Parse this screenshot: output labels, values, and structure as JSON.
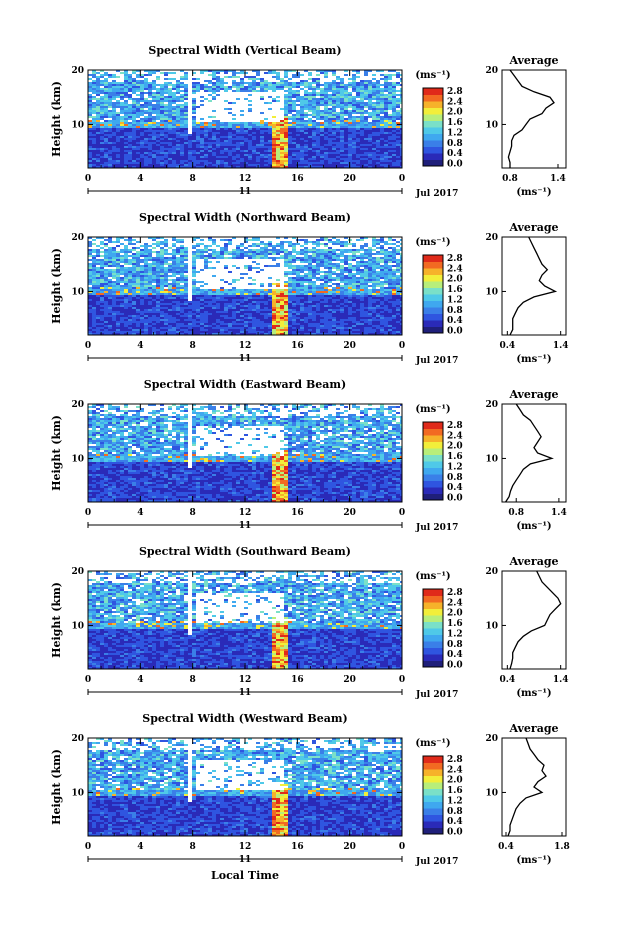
{
  "figure": {
    "xlabel": "Local Time",
    "date_label": "Jul 2017",
    "day_label": "11",
    "ylabel": "Height (km)",
    "avg_title": "Average",
    "cbar_unit": "(ms⁻¹)",
    "avg_unit": "(ms⁻¹)",
    "colormap": [
      "#1f1f7a",
      "#2a2ab8",
      "#2f55e0",
      "#3a7fe8",
      "#3fa8ef",
      "#4fc9e8",
      "#7ae0c8",
      "#b8ee7a",
      "#f2ee3a",
      "#f6b22a",
      "#f26a22",
      "#e02a1a"
    ]
  },
  "chart_data": [
    {
      "type": "heatmap",
      "title": "Spectral Width (Vertical Beam)",
      "x_ticks": [
        "0",
        "4",
        "8",
        "12",
        "16",
        "20",
        "0"
      ],
      "y_ticks": [
        "10",
        "20"
      ],
      "xlim": [
        0,
        24
      ],
      "ylim": [
        2,
        20
      ],
      "colorbar_ticks": [
        "2.8",
        "2.4",
        "2.0",
        "1.6",
        "1.2",
        "0.8",
        "0.4",
        "0.0"
      ],
      "avg_profile": {
        "xlabel_ticks": [
          "0.8",
          "1.4"
        ],
        "xlim": [
          0.7,
          1.5
        ],
        "heights": [
          2,
          3,
          4,
          5,
          6,
          7,
          8,
          9,
          10,
          11,
          12,
          13,
          14,
          15,
          16,
          17,
          18,
          19,
          20
        ],
        "values": [
          0.8,
          0.8,
          0.78,
          0.8,
          0.82,
          0.82,
          0.85,
          0.95,
          1.0,
          1.05,
          1.2,
          1.25,
          1.35,
          1.3,
          1.1,
          0.95,
          0.9,
          0.85,
          0.8
        ]
      }
    },
    {
      "type": "heatmap",
      "title": "Spectral Width (Northward Beam)",
      "x_ticks": [
        "0",
        "4",
        "8",
        "12",
        "16",
        "20",
        "0"
      ],
      "y_ticks": [
        "10",
        "20"
      ],
      "xlim": [
        0,
        24
      ],
      "ylim": [
        2,
        20
      ],
      "colorbar_ticks": [
        "2.8",
        "2.4",
        "2.0",
        "1.6",
        "1.2",
        "0.8",
        "0.4",
        "0.0"
      ],
      "avg_profile": {
        "xlabel_ticks": [
          "0.4",
          "1.4"
        ],
        "xlim": [
          0.3,
          1.5
        ],
        "heights": [
          2,
          3,
          4,
          5,
          6,
          7,
          8,
          9,
          10,
          11,
          12,
          13,
          14,
          15,
          16,
          17,
          18,
          19,
          20
        ],
        "values": [
          0.45,
          0.5,
          0.5,
          0.5,
          0.55,
          0.6,
          0.7,
          0.9,
          1.3,
          1.1,
          1.0,
          1.05,
          1.15,
          1.05,
          1.0,
          0.95,
          0.9,
          0.85,
          0.8
        ]
      }
    },
    {
      "type": "heatmap",
      "title": "Spectral Width (Eastward Beam)",
      "x_ticks": [
        "0",
        "4",
        "8",
        "12",
        "16",
        "20",
        "0"
      ],
      "y_ticks": [
        "10",
        "20"
      ],
      "xlim": [
        0,
        24
      ],
      "ylim": [
        2,
        20
      ],
      "colorbar_ticks": [
        "2.8",
        "2.4",
        "2.0",
        "1.6",
        "1.2",
        "0.8",
        "0.4",
        "0.0"
      ],
      "avg_profile": {
        "xlabel_ticks": [
          "0.8",
          "1.4"
        ],
        "xlim": [
          0.6,
          1.5
        ],
        "heights": [
          2,
          3,
          4,
          5,
          6,
          7,
          8,
          9,
          10,
          11,
          12,
          13,
          14,
          15,
          16,
          17,
          18,
          19,
          20
        ],
        "values": [
          0.65,
          0.7,
          0.72,
          0.75,
          0.8,
          0.85,
          0.9,
          1.0,
          1.3,
          1.1,
          1.05,
          1.1,
          1.15,
          1.1,
          1.05,
          1.0,
          0.9,
          0.85,
          0.8
        ]
      }
    },
    {
      "type": "heatmap",
      "title": "Spectral Width (Southward Beam)",
      "x_ticks": [
        "0",
        "4",
        "8",
        "12",
        "16",
        "20",
        "0"
      ],
      "y_ticks": [
        "10",
        "20"
      ],
      "xlim": [
        0,
        24
      ],
      "ylim": [
        2,
        20
      ],
      "colorbar_ticks": [
        "2.8",
        "2.4",
        "2.0",
        "1.6",
        "1.2",
        "0.8",
        "0.4",
        "0.0"
      ],
      "avg_profile": {
        "xlabel_ticks": [
          "0.4",
          "1.4"
        ],
        "xlim": [
          0.3,
          1.5
        ],
        "heights": [
          2,
          3,
          4,
          5,
          6,
          7,
          8,
          9,
          10,
          11,
          12,
          13,
          14,
          15,
          16,
          17,
          18,
          19,
          20
        ],
        "values": [
          0.45,
          0.48,
          0.5,
          0.5,
          0.55,
          0.6,
          0.7,
          0.85,
          1.1,
          1.15,
          1.2,
          1.3,
          1.4,
          1.35,
          1.25,
          1.15,
          1.05,
          1.0,
          0.95
        ]
      }
    },
    {
      "type": "heatmap",
      "title": "Spectral Width (Westward Beam)",
      "x_ticks": [
        "0",
        "4",
        "8",
        "12",
        "16",
        "20",
        "0"
      ],
      "y_ticks": [
        "10",
        "20"
      ],
      "xlim": [
        0,
        24
      ],
      "ylim": [
        2,
        20
      ],
      "colorbar_ticks": [
        "2.8",
        "2.4",
        "2.0",
        "1.6",
        "1.2",
        "0.8",
        "0.4",
        "0.0"
      ],
      "avg_profile": {
        "xlabel_ticks": [
          "0.4",
          "1.8"
        ],
        "xlim": [
          0.3,
          1.9
        ],
        "heights": [
          2,
          3,
          4,
          5,
          6,
          7,
          8,
          9,
          10,
          11,
          12,
          13,
          14,
          15,
          16,
          17,
          18,
          19,
          20
        ],
        "values": [
          0.45,
          0.5,
          0.5,
          0.55,
          0.6,
          0.65,
          0.75,
          0.9,
          1.3,
          1.1,
          1.2,
          1.4,
          1.3,
          1.35,
          1.2,
          1.1,
          1.0,
          0.95,
          0.9
        ]
      }
    }
  ]
}
